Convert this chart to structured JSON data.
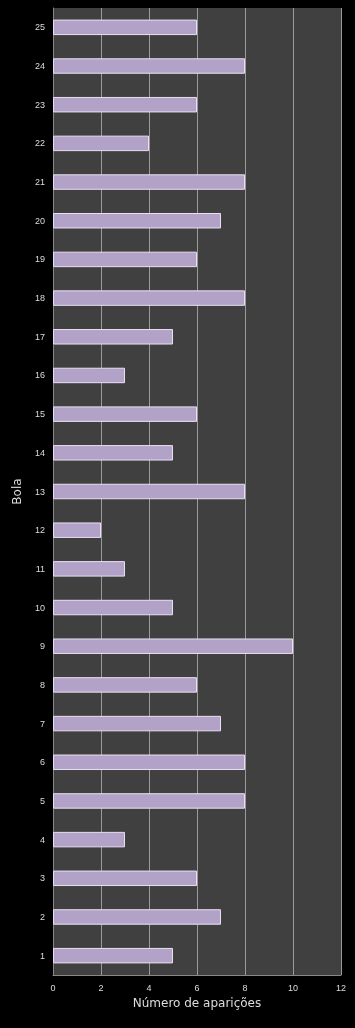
{
  "chart_data": {
    "type": "bar",
    "orientation": "horizontal",
    "xlabel": "Número de aparições",
    "ylabel": "Bola",
    "categories": [
      "25",
      "24",
      "23",
      "22",
      "21",
      "20",
      "19",
      "18",
      "17",
      "16",
      "15",
      "14",
      "13",
      "12",
      "11",
      "10",
      "9",
      "8",
      "7",
      "6",
      "5",
      "4",
      "3",
      "2",
      "1"
    ],
    "values": [
      6,
      8,
      6,
      4,
      8,
      7,
      6,
      8,
      5,
      3,
      6,
      5,
      8,
      2,
      3,
      5,
      10,
      6,
      7,
      8,
      8,
      3,
      6,
      7,
      5
    ],
    "color": "#b3a2c7",
    "xlim": [
      0,
      12
    ],
    "xticks": [
      0,
      2,
      4,
      6,
      8,
      10,
      12
    ],
    "grid": "x"
  }
}
